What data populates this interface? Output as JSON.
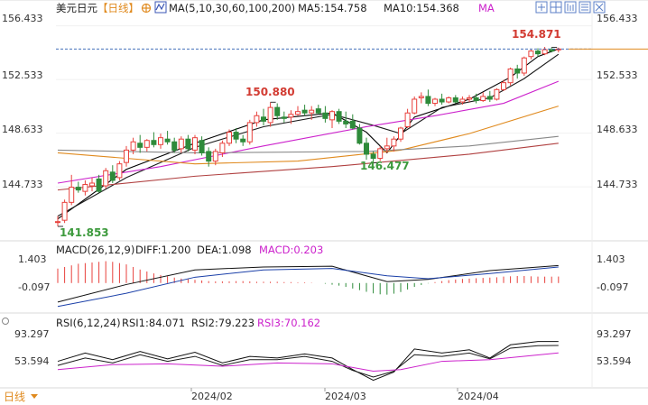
{
  "header": {
    "symbol": "美元日元",
    "period": "【日线】",
    "ma_label": "MA(5,10,30,60,100,200)",
    "ma5": "MA5:154.758",
    "ma10": "MA10:154.368",
    "ma_more": "MA"
  },
  "colors": {
    "up": "#e8413c",
    "down": "#2e8b3a",
    "ma5": "#000000",
    "ma10": "#1a1a1a",
    "ma30": "#cc22cc",
    "ma60": "#e08a1e",
    "ma100": "#888888",
    "ma200": "#b04040",
    "price_line": "#e08a1e",
    "hi_label": "#d23b32",
    "lo_label": "#3d9a3d",
    "rsi2": "#1a1a1a",
    "rsi3": "#cc22cc"
  },
  "price_axis": {
    "ticks": [
      "156.433",
      "152.533",
      "148.633",
      "144.733"
    ]
  },
  "annotations": {
    "high_1": "150.880",
    "high_2": "154.871",
    "low_1": "141.853",
    "low_2": "146.477"
  },
  "macd": {
    "label": "MACD(26,12,9)",
    "diff": "DIFF:1.200",
    "dea": "DEA:1.098",
    "macd": "MACD:0.203",
    "ticks": [
      "1.403",
      "-0.097"
    ]
  },
  "rsi": {
    "label": "RSI(6,12,24)",
    "rsi1": "RSI1:84.071",
    "rsi2": "RSI2:79.223",
    "rsi3": "RSI3:70.162",
    "ticks": [
      "93.297",
      "53.594"
    ]
  },
  "dates": [
    "2024/02",
    "2024/03",
    "2024/04"
  ],
  "period_button": "日线",
  "toolbar_icons": [
    "expand-icon",
    "grid-icon",
    "chart-type-icon",
    "list-icon",
    "close-icon"
  ],
  "chart_data": {
    "type": "candlestick",
    "title": "美元日元【日线】",
    "ylim": [
      141.0,
      157.0
    ],
    "candles": [
      {
        "o": 142.2,
        "h": 142.6,
        "l": 141.853,
        "c": 142.2
      },
      {
        "o": 142.3,
        "h": 143.8,
        "l": 142.1,
        "c": 143.6
      },
      {
        "o": 143.6,
        "h": 145.6,
        "l": 143.4,
        "c": 144.7
      },
      {
        "o": 144.7,
        "h": 145.1,
        "l": 144.3,
        "c": 144.5
      },
      {
        "o": 144.4,
        "h": 145.2,
        "l": 144.1,
        "c": 144.9
      },
      {
        "o": 144.8,
        "h": 145.4,
        "l": 144.4,
        "c": 145.0
      },
      {
        "o": 145.3,
        "h": 145.6,
        "l": 144.3,
        "c": 144.4
      },
      {
        "o": 144.8,
        "h": 146.1,
        "l": 144.6,
        "c": 145.9
      },
      {
        "o": 145.8,
        "h": 146.3,
        "l": 145.0,
        "c": 145.2
      },
      {
        "o": 145.4,
        "h": 146.6,
        "l": 145.2,
        "c": 146.4
      },
      {
        "o": 146.5,
        "h": 147.7,
        "l": 146.2,
        "c": 147.4
      },
      {
        "o": 147.4,
        "h": 148.3,
        "l": 147.1,
        "c": 148.0
      },
      {
        "o": 147.9,
        "h": 148.5,
        "l": 147.2,
        "c": 147.6
      },
      {
        "o": 147.6,
        "h": 148.2,
        "l": 147.3,
        "c": 148.1
      },
      {
        "o": 148.1,
        "h": 148.7,
        "l": 147.6,
        "c": 147.8
      },
      {
        "o": 147.8,
        "h": 148.6,
        "l": 147.5,
        "c": 148.3
      },
      {
        "o": 148.2,
        "h": 148.8,
        "l": 147.8,
        "c": 148.0
      },
      {
        "o": 148.0,
        "h": 148.3,
        "l": 147.2,
        "c": 147.4
      },
      {
        "o": 147.5,
        "h": 148.4,
        "l": 147.2,
        "c": 148.2
      },
      {
        "o": 148.2,
        "h": 148.5,
        "l": 147.3,
        "c": 147.5
      },
      {
        "o": 147.4,
        "h": 148.5,
        "l": 147.1,
        "c": 148.3
      },
      {
        "o": 148.1,
        "h": 148.4,
        "l": 147.0,
        "c": 147.2
      },
      {
        "o": 147.3,
        "h": 147.6,
        "l": 146.2,
        "c": 146.6
      },
      {
        "o": 146.6,
        "h": 147.5,
        "l": 146.3,
        "c": 147.3
      },
      {
        "o": 147.2,
        "h": 148.1,
        "l": 146.9,
        "c": 147.9
      },
      {
        "o": 147.9,
        "h": 148.9,
        "l": 147.7,
        "c": 148.7
      },
      {
        "o": 148.7,
        "h": 149.0,
        "l": 147.9,
        "c": 148.2
      },
      {
        "o": 148.2,
        "h": 148.5,
        "l": 147.7,
        "c": 148.0
      },
      {
        "o": 148.0,
        "h": 149.6,
        "l": 147.8,
        "c": 149.4
      },
      {
        "o": 149.4,
        "h": 150.2,
        "l": 149.1,
        "c": 149.9
      },
      {
        "o": 149.8,
        "h": 150.4,
        "l": 149.2,
        "c": 149.5
      },
      {
        "o": 149.4,
        "h": 150.88,
        "l": 149.1,
        "c": 150.5
      },
      {
        "o": 150.5,
        "h": 150.8,
        "l": 149.6,
        "c": 149.9
      },
      {
        "o": 149.8,
        "h": 150.2,
        "l": 149.4,
        "c": 149.7
      },
      {
        "o": 149.8,
        "h": 150.3,
        "l": 149.3,
        "c": 150.0
      },
      {
        "o": 150.0,
        "h": 150.6,
        "l": 149.9,
        "c": 150.2
      },
      {
        "o": 150.3,
        "h": 150.7,
        "l": 149.9,
        "c": 150.1
      },
      {
        "o": 150.1,
        "h": 150.6,
        "l": 149.6,
        "c": 150.3
      },
      {
        "o": 150.4,
        "h": 150.7,
        "l": 150.0,
        "c": 150.1
      },
      {
        "o": 150.1,
        "h": 150.6,
        "l": 149.4,
        "c": 149.7
      },
      {
        "o": 149.6,
        "h": 150.3,
        "l": 149.0,
        "c": 150.2
      },
      {
        "o": 150.2,
        "h": 150.4,
        "l": 149.3,
        "c": 149.5
      },
      {
        "o": 149.5,
        "h": 150.2,
        "l": 149.0,
        "c": 149.3
      },
      {
        "o": 149.5,
        "h": 150.0,
        "l": 148.9,
        "c": 149.0
      },
      {
        "o": 149.0,
        "h": 149.3,
        "l": 147.8,
        "c": 147.9
      },
      {
        "o": 147.9,
        "h": 148.3,
        "l": 146.7,
        "c": 147.1
      },
      {
        "o": 147.1,
        "h": 147.3,
        "l": 146.477,
        "c": 146.8
      },
      {
        "o": 146.8,
        "h": 147.7,
        "l": 146.6,
        "c": 147.5
      },
      {
        "o": 147.5,
        "h": 148.3,
        "l": 147.2,
        "c": 147.7
      },
      {
        "o": 147.7,
        "h": 148.4,
        "l": 147.3,
        "c": 148.2
      },
      {
        "o": 148.2,
        "h": 149.1,
        "l": 148.0,
        "c": 149.0
      },
      {
        "o": 149.1,
        "h": 150.4,
        "l": 149.0,
        "c": 150.1
      },
      {
        "o": 150.1,
        "h": 151.3,
        "l": 150.0,
        "c": 151.1
      },
      {
        "o": 151.2,
        "h": 151.6,
        "l": 150.8,
        "c": 151.3
      },
      {
        "o": 151.3,
        "h": 151.8,
        "l": 150.6,
        "c": 150.8
      },
      {
        "o": 150.8,
        "h": 151.2,
        "l": 150.6,
        "c": 151.1
      },
      {
        "o": 151.1,
        "h": 151.5,
        "l": 150.7,
        "c": 150.9
      },
      {
        "o": 150.9,
        "h": 151.3,
        "l": 150.8,
        "c": 151.2
      },
      {
        "o": 151.2,
        "h": 151.4,
        "l": 150.8,
        "c": 150.9
      },
      {
        "o": 150.9,
        "h": 151.3,
        "l": 150.7,
        "c": 151.1
      },
      {
        "o": 151.1,
        "h": 151.4,
        "l": 150.9,
        "c": 151.2
      },
      {
        "o": 151.2,
        "h": 151.5,
        "l": 150.8,
        "c": 151.0
      },
      {
        "o": 151.0,
        "h": 151.6,
        "l": 150.9,
        "c": 151.3
      },
      {
        "o": 151.3,
        "h": 151.7,
        "l": 150.9,
        "c": 151.1
      },
      {
        "o": 151.1,
        "h": 151.9,
        "l": 151.0,
        "c": 151.8
      },
      {
        "o": 151.8,
        "h": 152.5,
        "l": 151.7,
        "c": 152.3
      },
      {
        "o": 152.3,
        "h": 153.4,
        "l": 152.1,
        "c": 153.3
      },
      {
        "o": 153.3,
        "h": 153.6,
        "l": 152.6,
        "c": 153.0
      },
      {
        "o": 153.0,
        "h": 154.2,
        "l": 152.8,
        "c": 154.1
      },
      {
        "o": 154.2,
        "h": 154.7,
        "l": 154.0,
        "c": 154.6
      },
      {
        "o": 154.6,
        "h": 154.8,
        "l": 154.2,
        "c": 154.4
      },
      {
        "o": 154.4,
        "h": 154.9,
        "l": 154.3,
        "c": 154.7
      },
      {
        "o": 154.7,
        "h": 154.871,
        "l": 154.5,
        "c": 154.6
      },
      {
        "o": 154.7,
        "h": 154.85,
        "l": 154.5,
        "c": 154.75
      }
    ],
    "moving_averages": [
      {
        "name": "MA5",
        "values": [
          [
            0,
            142.4
          ],
          [
            10,
            146.0
          ],
          [
            20,
            147.9
          ],
          [
            30,
            149.6
          ],
          [
            40,
            150.1
          ],
          [
            45,
            148.7
          ],
          [
            48,
            147.2
          ],
          [
            52,
            149.8
          ],
          [
            60,
            151.1
          ],
          [
            66,
            152.7
          ],
          [
            70,
            154.2
          ],
          [
            73,
            154.758
          ]
        ]
      },
      {
        "name": "MA10",
        "values": [
          [
            0,
            142.6
          ],
          [
            10,
            145.4
          ],
          [
            20,
            147.6
          ],
          [
            30,
            149.1
          ],
          [
            40,
            150.0
          ],
          [
            46,
            149.2
          ],
          [
            50,
            148.6
          ],
          [
            56,
            150.5
          ],
          [
            63,
            151.2
          ],
          [
            68,
            152.6
          ],
          [
            73,
            154.368
          ]
        ]
      },
      {
        "name": "MA30",
        "values": [
          [
            0,
            145.0
          ],
          [
            15,
            146.2
          ],
          [
            30,
            147.7
          ],
          [
            45,
            149.1
          ],
          [
            55,
            149.9
          ],
          [
            65,
            150.8
          ],
          [
            73,
            152.4
          ]
        ]
      },
      {
        "name": "MA60",
        "values": [
          [
            0,
            147.2
          ],
          [
            20,
            146.4
          ],
          [
            35,
            146.6
          ],
          [
            50,
            147.4
          ],
          [
            60,
            148.6
          ],
          [
            73,
            150.6
          ]
        ]
      },
      {
        "name": "MA100",
        "values": [
          [
            0,
            147.4
          ],
          [
            20,
            147.2
          ],
          [
            45,
            147.3
          ],
          [
            60,
            147.7
          ],
          [
            73,
            148.4
          ]
        ]
      },
      {
        "name": "MA200",
        "values": [
          [
            0,
            144.5
          ],
          [
            20,
            145.5
          ],
          [
            40,
            146.2
          ],
          [
            60,
            147.1
          ],
          [
            73,
            147.9
          ]
        ]
      }
    ],
    "last_price": 154.75,
    "macd_panel": {
      "ylim": [
        -1.8,
        1.9
      ],
      "diff_points": [
        [
          0,
          -1.3
        ],
        [
          10,
          -0.1
        ],
        [
          20,
          0.9
        ],
        [
          30,
          1.1
        ],
        [
          40,
          1.15
        ],
        [
          48,
          0.1
        ],
        [
          54,
          0.25
        ],
        [
          63,
          0.85
        ],
        [
          73,
          1.2
        ]
      ],
      "dea_points": [
        [
          0,
          -1.6
        ],
        [
          10,
          -0.7
        ],
        [
          20,
          0.4
        ],
        [
          30,
          0.9
        ],
        [
          40,
          1.0
        ],
        [
          48,
          0.5
        ],
        [
          54,
          0.3
        ],
        [
          63,
          0.65
        ],
        [
          73,
          1.098
        ]
      ],
      "hist": [
        0.45,
        0.5,
        0.55,
        0.6,
        0.62,
        0.64,
        0.66,
        0.68,
        0.66,
        0.62,
        0.58,
        0.5,
        0.42,
        0.36,
        0.3,
        0.25,
        0.21,
        0.17,
        0.14,
        0.12,
        0.1,
        0.08,
        0.06,
        0.05,
        0.05,
        0.05,
        0.06,
        0.06,
        0.05,
        0.04,
        0.04,
        0.04,
        0.04,
        0.03,
        0.03,
        0.02,
        0.02,
        0.01,
        0.0,
        -0.02,
        -0.05,
        -0.08,
        -0.12,
        -0.17,
        -0.22,
        -0.27,
        -0.32,
        -0.35,
        -0.36,
        -0.33,
        -0.28,
        -0.2,
        -0.12,
        -0.06,
        -0.01,
        0.03,
        0.06,
        0.09,
        0.11,
        0.13,
        0.14,
        0.15,
        0.16,
        0.17,
        0.18,
        0.2,
        0.21,
        0.22,
        0.22,
        0.21,
        0.2,
        0.2,
        0.2,
        0.203
      ]
    },
    "rsi_panel": {
      "ylim": [
        30,
        100
      ],
      "rsi1": [
        [
          0,
          60
        ],
        [
          4,
          70
        ],
        [
          8,
          62
        ],
        [
          12,
          72
        ],
        [
          16,
          63
        ],
        [
          20,
          71
        ],
        [
          24,
          58
        ],
        [
          28,
          66
        ],
        [
          32,
          64
        ],
        [
          36,
          69
        ],
        [
          40,
          64
        ],
        [
          43,
          50
        ],
        [
          46,
          37
        ],
        [
          49,
          47
        ],
        [
          52,
          75
        ],
        [
          56,
          70
        ],
        [
          60,
          74
        ],
        [
          63,
          64
        ],
        [
          66,
          80
        ],
        [
          70,
          84
        ],
        [
          73,
          84.071
        ]
      ],
      "rsi2": [
        [
          0,
          55
        ],
        [
          4,
          64
        ],
        [
          8,
          58
        ],
        [
          12,
          68
        ],
        [
          16,
          60
        ],
        [
          20,
          66
        ],
        [
          24,
          55
        ],
        [
          28,
          62
        ],
        [
          32,
          62
        ],
        [
          36,
          66
        ],
        [
          40,
          60
        ],
        [
          43,
          49
        ],
        [
          46,
          41
        ],
        [
          49,
          48
        ],
        [
          52,
          68
        ],
        [
          56,
          66
        ],
        [
          60,
          70
        ],
        [
          63,
          63
        ],
        [
          66,
          76
        ],
        [
          70,
          79
        ],
        [
          73,
          79.223
        ]
      ],
      "rsi3": [
        [
          0,
          50
        ],
        [
          8,
          56
        ],
        [
          16,
          57
        ],
        [
          24,
          54
        ],
        [
          32,
          58
        ],
        [
          40,
          57
        ],
        [
          46,
          48
        ],
        [
          50,
          50
        ],
        [
          56,
          60
        ],
        [
          63,
          62
        ],
        [
          73,
          70.162
        ]
      ]
    }
  }
}
